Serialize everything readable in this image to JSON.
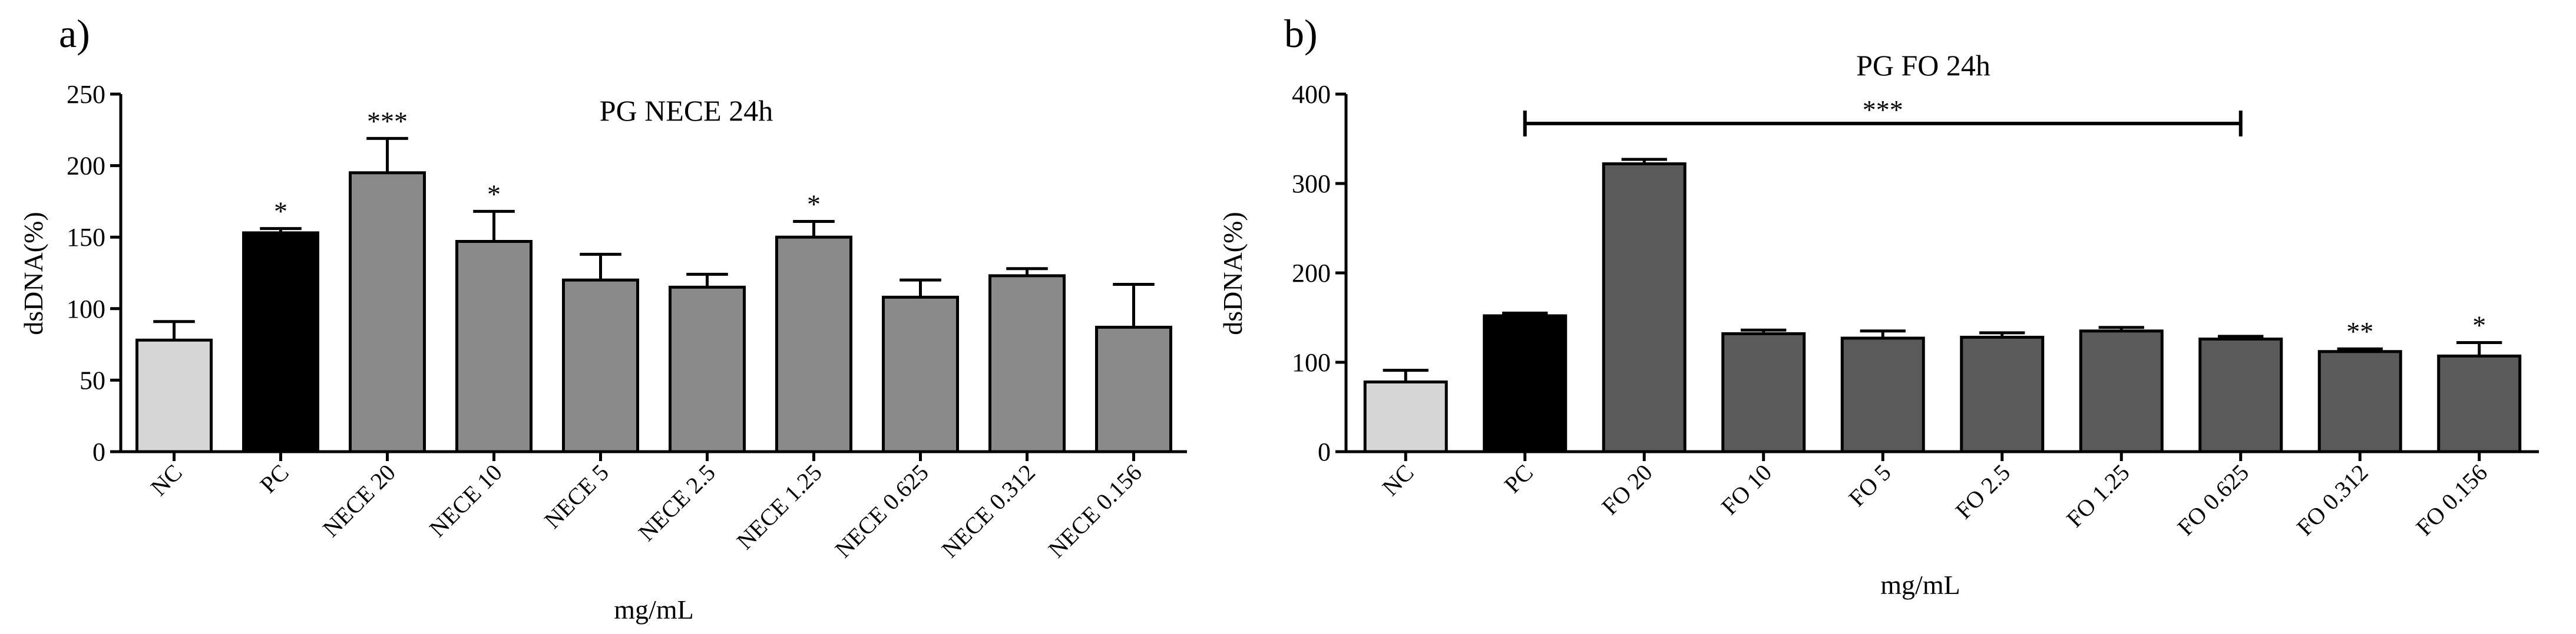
{
  "chart_data": [
    {
      "type": "bar",
      "panel_label": "a)",
      "title": "PG NECE 24h",
      "xlabel": "mg/mL",
      "ylabel": "dsDNA(%)",
      "ylim": [
        0,
        250
      ],
      "yticks": [
        0,
        50,
        100,
        150,
        200,
        250
      ],
      "grid": false,
      "categories": [
        "NC",
        "PC",
        "NECE 20",
        "NECE 10",
        "NECE 5",
        "NECE 2.5",
        "NECE 1.25",
        "NECE 0.625",
        "NECE 0.312",
        "NECE 0.156"
      ],
      "values": [
        78,
        153,
        195,
        147,
        120,
        115,
        150,
        108,
        123,
        87
      ],
      "errors": [
        13,
        3,
        24,
        21,
        18,
        9,
        11,
        12,
        5,
        30
      ],
      "significance": [
        "",
        "*",
        "***",
        "*",
        "",
        "",
        "*",
        "",
        "",
        ""
      ],
      "colors": [
        "#d6d6d6",
        "#000000",
        "#8a8a8a",
        "#8a8a8a",
        "#8a8a8a",
        "#8a8a8a",
        "#8a8a8a",
        "#8a8a8a",
        "#8a8a8a",
        "#8a8a8a"
      ]
    },
    {
      "type": "bar",
      "panel_label": "b)",
      "title": "PG FO 24h",
      "xlabel": "mg/mL",
      "ylabel": "dsDNA(%)",
      "ylim": [
        0,
        400
      ],
      "yticks": [
        0,
        100,
        200,
        300,
        400
      ],
      "grid": false,
      "categories": [
        "NC",
        "PC",
        "FO 20",
        "FO 10",
        "FO 5",
        "FO 2.5",
        "FO 1.25",
        "FO 0.625",
        "FO 0.312",
        "FO 0.156"
      ],
      "values": [
        78,
        152,
        322,
        132,
        127,
        128,
        135,
        126,
        112,
        107
      ],
      "errors": [
        13,
        3,
        5,
        4,
        8,
        5,
        4,
        3,
        3,
        15
      ],
      "significance": [
        "",
        "",
        "",
        "",
        "",
        "",
        "",
        "",
        "**",
        "*"
      ],
      "colors": [
        "#d6d6d6",
        "#000000",
        "#5a5a5a",
        "#5a5a5a",
        "#5a5a5a",
        "#5a5a5a",
        "#5a5a5a",
        "#5a5a5a",
        "#5a5a5a",
        "#5a5a5a"
      ],
      "bracket": {
        "from": "PC",
        "to": "FO 0.625",
        "label": "***"
      }
    }
  ]
}
